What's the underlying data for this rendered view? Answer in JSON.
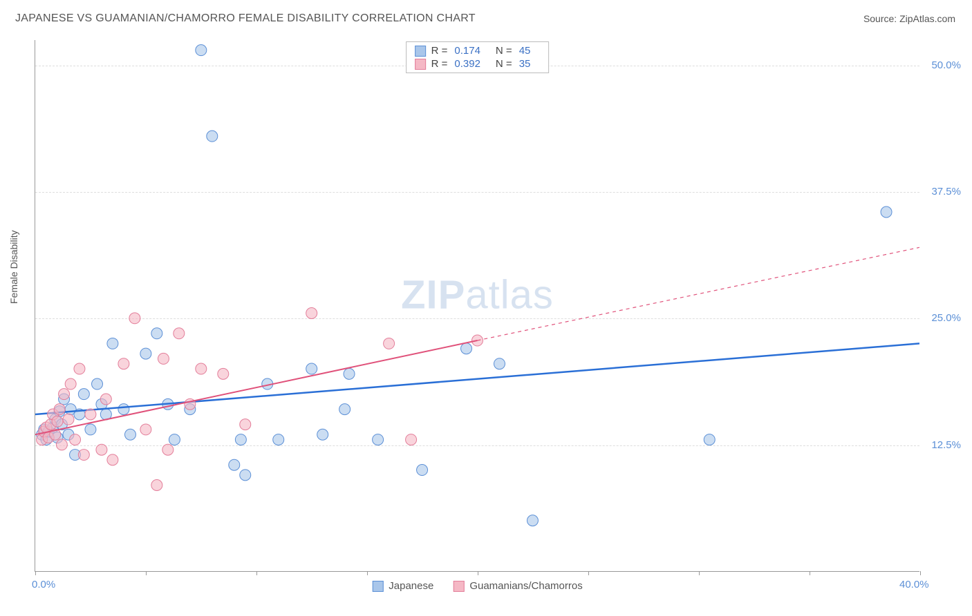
{
  "title": "JAPANESE VS GUAMANIAN/CHAMORRO FEMALE DISABILITY CORRELATION CHART",
  "source": "Source: ZipAtlas.com",
  "watermark_part1": "ZIP",
  "watermark_part2": "atlas",
  "chart": {
    "type": "scatter",
    "ylabel": "Female Disability",
    "xlim": [
      0,
      40
    ],
    "ylim": [
      0,
      52.5
    ],
    "xtick_positions": [
      0,
      5,
      10,
      15,
      20,
      25,
      30,
      35,
      40
    ],
    "xtick_labels": {
      "0": "0.0%",
      "40": "40.0%"
    },
    "ytick_positions": [
      12.5,
      25.0,
      37.5,
      50.0
    ],
    "ytick_labels": [
      "12.5%",
      "25.0%",
      "37.5%",
      "50.0%"
    ],
    "grid_color": "#dddddd",
    "axis_color": "#999999",
    "series": [
      {
        "name": "Japanese",
        "color_fill": "#a9c6ea",
        "color_stroke": "#5b8fd6",
        "marker_radius": 8,
        "marker_opacity": 0.6,
        "r": "0.174",
        "n": "45",
        "trend": {
          "x1": 0,
          "y1": 15.5,
          "x2": 40,
          "y2": 22.5,
          "color": "#2a6fd6",
          "width": 2.5,
          "dash_after_x": 40
        },
        "points": [
          [
            0.3,
            13.5
          ],
          [
            0.4,
            14.0
          ],
          [
            0.5,
            13.0
          ],
          [
            0.6,
            13.8
          ],
          [
            0.8,
            14.2
          ],
          [
            0.9,
            15.0
          ],
          [
            1.0,
            13.2
          ],
          [
            1.1,
            15.8
          ],
          [
            1.2,
            14.5
          ],
          [
            1.3,
            17.0
          ],
          [
            1.5,
            13.5
          ],
          [
            1.6,
            16.0
          ],
          [
            1.8,
            11.5
          ],
          [
            2.0,
            15.5
          ],
          [
            2.2,
            17.5
          ],
          [
            2.5,
            14.0
          ],
          [
            2.8,
            18.5
          ],
          [
            3.0,
            16.5
          ],
          [
            3.2,
            15.5
          ],
          [
            3.5,
            22.5
          ],
          [
            4.0,
            16.0
          ],
          [
            4.3,
            13.5
          ],
          [
            5.0,
            21.5
          ],
          [
            5.5,
            23.5
          ],
          [
            6.0,
            16.5
          ],
          [
            6.3,
            13.0
          ],
          [
            7.0,
            16.0
          ],
          [
            7.5,
            51.5
          ],
          [
            8.0,
            43.0
          ],
          [
            9.0,
            10.5
          ],
          [
            9.3,
            13.0
          ],
          [
            9.5,
            9.5
          ],
          [
            10.5,
            18.5
          ],
          [
            11.0,
            13.0
          ],
          [
            12.5,
            20.0
          ],
          [
            13.0,
            13.5
          ],
          [
            14.0,
            16.0
          ],
          [
            14.2,
            19.5
          ],
          [
            15.5,
            13.0
          ],
          [
            17.5,
            10.0
          ],
          [
            19.5,
            22.0
          ],
          [
            21.0,
            20.5
          ],
          [
            22.5,
            5.0
          ],
          [
            30.5,
            13.0
          ],
          [
            38.5,
            35.5
          ]
        ]
      },
      {
        "name": "Guamanians/Chamorros",
        "color_fill": "#f5b8c5",
        "color_stroke": "#e37d99",
        "marker_radius": 8,
        "marker_opacity": 0.6,
        "r": "0.392",
        "n": "35",
        "trend": {
          "x1": 0,
          "y1": 13.5,
          "x2_solid": 20,
          "y2_solid": 22.8,
          "x2": 40,
          "y2": 32.0,
          "color": "#e0517a",
          "width": 2,
          "dash_after_x": 20
        },
        "points": [
          [
            0.3,
            13.0
          ],
          [
            0.4,
            13.8
          ],
          [
            0.5,
            14.2
          ],
          [
            0.6,
            13.2
          ],
          [
            0.7,
            14.5
          ],
          [
            0.8,
            15.5
          ],
          [
            0.9,
            13.5
          ],
          [
            1.0,
            14.8
          ],
          [
            1.1,
            16.0
          ],
          [
            1.2,
            12.5
          ],
          [
            1.3,
            17.5
          ],
          [
            1.5,
            15.0
          ],
          [
            1.6,
            18.5
          ],
          [
            1.8,
            13.0
          ],
          [
            2.0,
            20.0
          ],
          [
            2.2,
            11.5
          ],
          [
            2.5,
            15.5
          ],
          [
            3.0,
            12.0
          ],
          [
            3.2,
            17.0
          ],
          [
            3.5,
            11.0
          ],
          [
            4.0,
            20.5
          ],
          [
            4.5,
            25.0
          ],
          [
            5.0,
            14.0
          ],
          [
            5.5,
            8.5
          ],
          [
            5.8,
            21.0
          ],
          [
            6.0,
            12.0
          ],
          [
            6.5,
            23.5
          ],
          [
            7.0,
            16.5
          ],
          [
            7.5,
            20.0
          ],
          [
            8.5,
            19.5
          ],
          [
            9.5,
            14.5
          ],
          [
            12.5,
            25.5
          ],
          [
            16.0,
            22.5
          ],
          [
            17.0,
            13.0
          ],
          [
            20.0,
            22.8
          ]
        ]
      }
    ],
    "tick_value_color": "#5b8fd6",
    "label_color": "#555555",
    "background_color": "#ffffff"
  },
  "legend_bottom": [
    {
      "label": "Japanese",
      "fill": "#a9c6ea",
      "stroke": "#5b8fd6"
    },
    {
      "label": "Guamanians/Chamorros",
      "fill": "#f5b8c5",
      "stroke": "#e37d99"
    }
  ]
}
